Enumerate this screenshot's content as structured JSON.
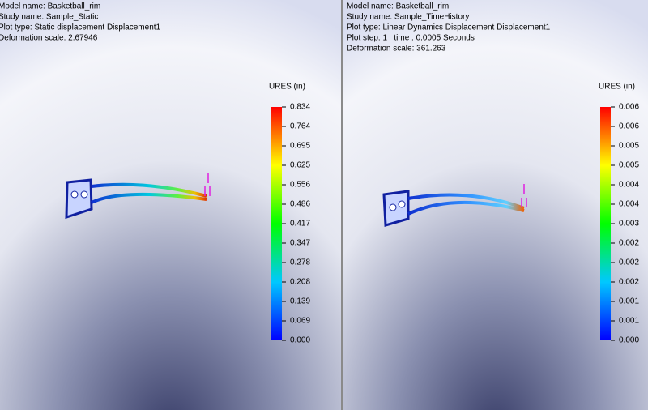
{
  "panels": [
    {
      "info": [
        "Model name: Basketball_rim",
        "Study name: Sample_Static",
        "Plot type: Static displacement Displacement1",
        "Deformation scale: 2.67946"
      ],
      "legend": {
        "title": "URES (in)",
        "labels": [
          "0.834",
          "0.764",
          "0.695",
          "0.625",
          "0.556",
          "0.486",
          "0.417",
          "0.347",
          "0.278",
          "0.208",
          "0.139",
          "0.069",
          "0.000"
        ]
      }
    },
    {
      "info": [
        "Model name: Basketball_rim",
        "Study name: Sample_TimeHistory",
        "Plot type: Linear Dynamics Displacement Displacement1",
        "Plot step: 1   time : 0.0005 Seconds",
        "Deformation scale: 361.263"
      ],
      "legend": {
        "title": "URES (in)",
        "labels": [
          "0.006",
          "0.006",
          "0.005",
          "0.005",
          "0.004",
          "0.004",
          "0.003",
          "0.002",
          "0.002",
          "0.002",
          "0.001",
          "0.001",
          "0.000"
        ]
      }
    }
  ]
}
